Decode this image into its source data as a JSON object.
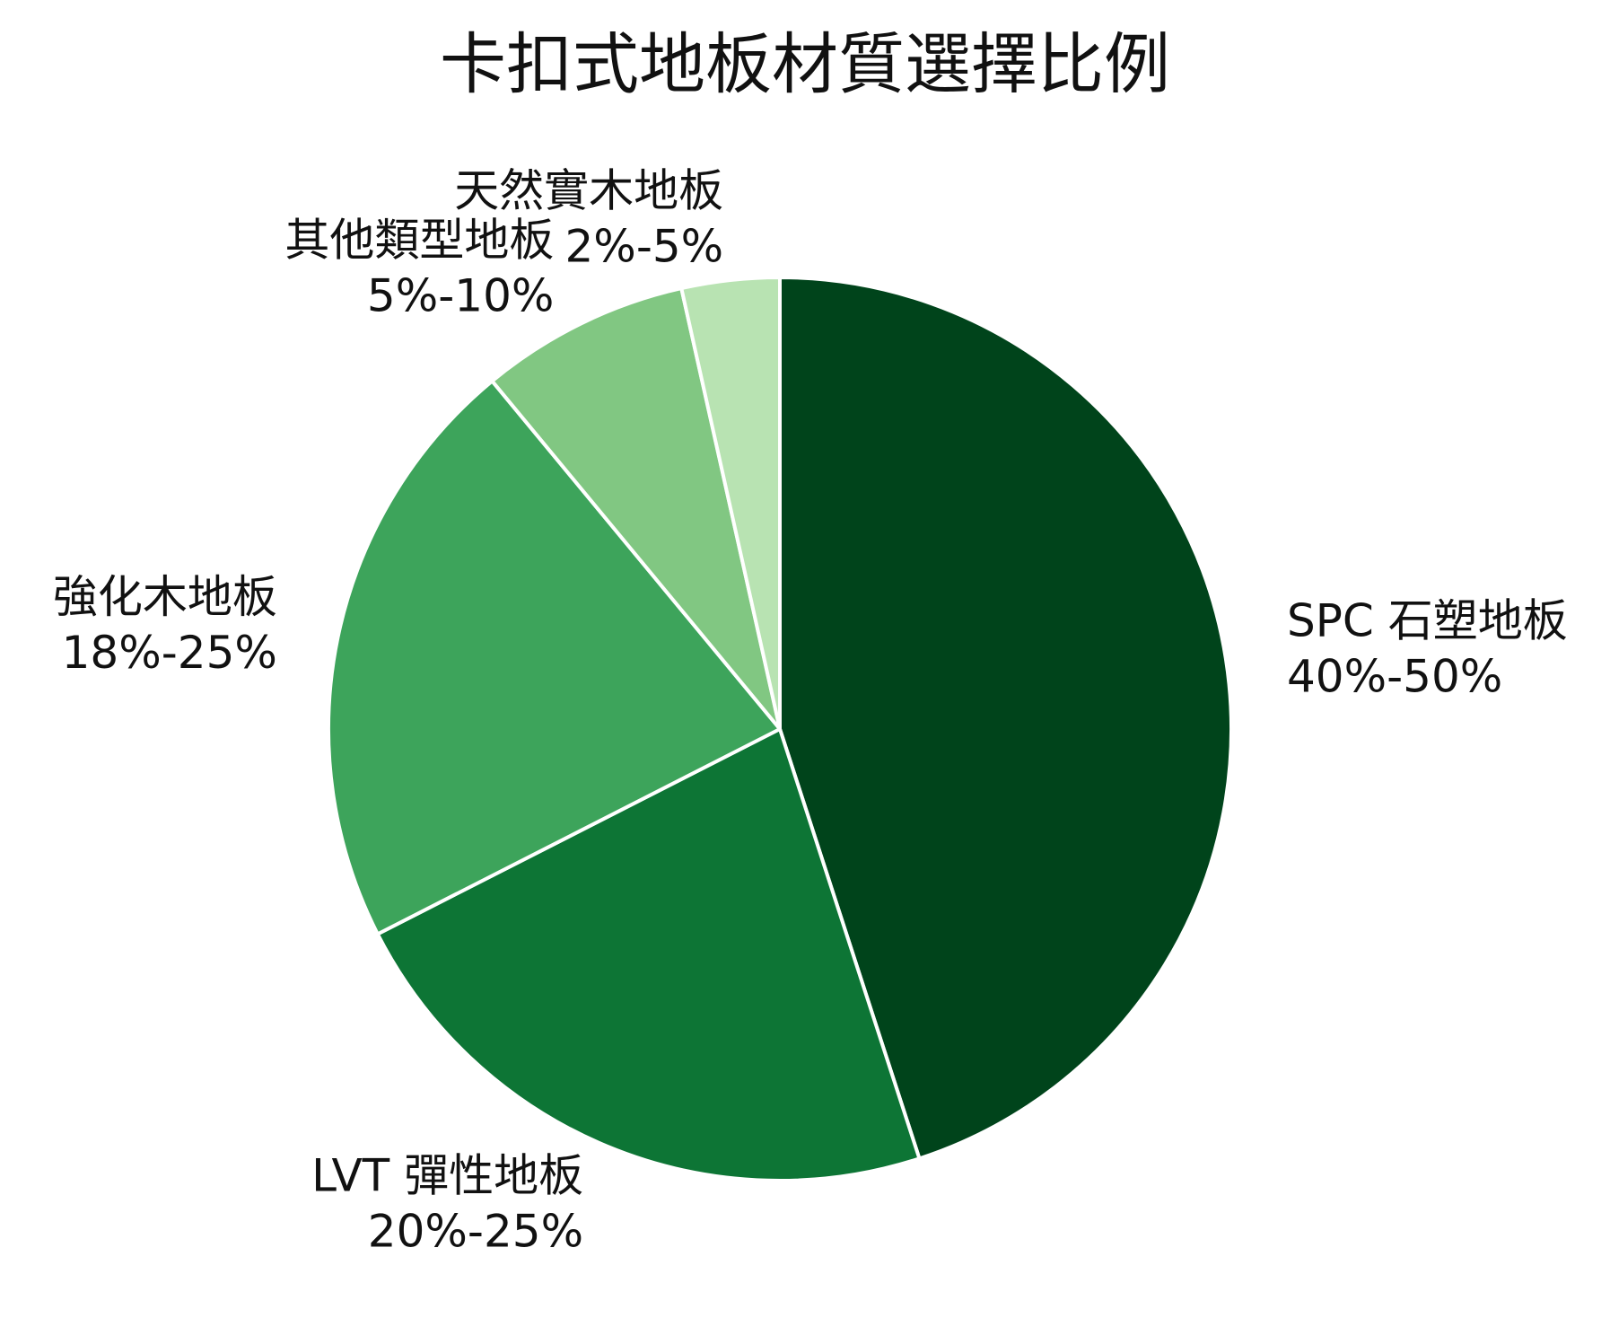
{
  "chart_data": {
    "type": "pie",
    "title": "卡扣式地板材質選擇比例",
    "start_angle_deg": 90,
    "direction": "clockwise",
    "slices": [
      {
        "name": "SPC 石塑地板",
        "range_label": "40%-50%",
        "value": 45,
        "color": "#00441b"
      },
      {
        "name": "LVT 彈性地板",
        "range_label": "20%-25%",
        "value": 22.5,
        "color": "#0d7535"
      },
      {
        "name": "強化木地板",
        "range_label": "18%-25%",
        "value": 21.5,
        "color": "#3da45b"
      },
      {
        "name": "其他類型地板",
        "range_label": "5%-10%",
        "value": 7.5,
        "color": "#81c782"
      },
      {
        "name": "天然實木地板",
        "range_label": "2%-5%",
        "value": 3.5,
        "color": "#b8e3b2"
      }
    ]
  }
}
